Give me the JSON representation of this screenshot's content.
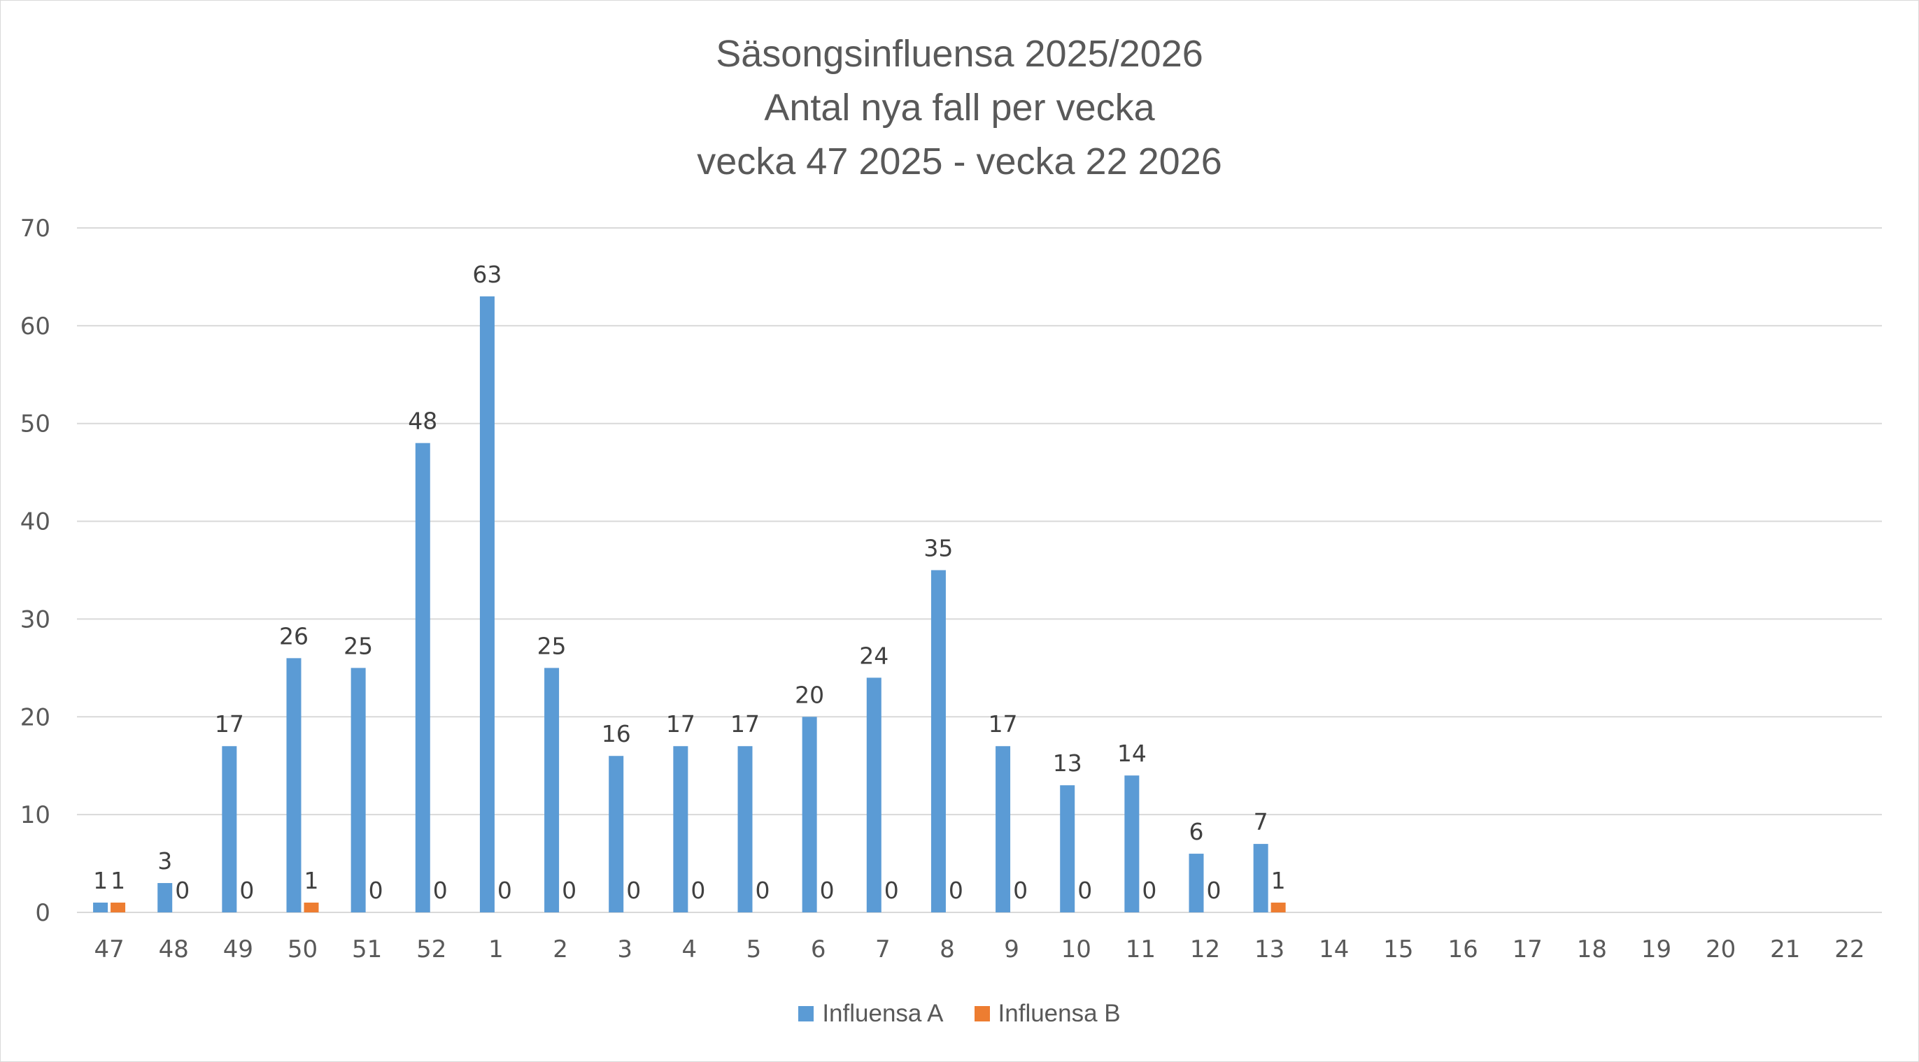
{
  "chart_data": {
    "type": "bar",
    "title": "Säsongsinfluensa 2025/2026",
    "subtitle": [
      "Antal nya fall per vecka",
      "vecka 47 2025 - vecka 22 2026"
    ],
    "xlabel": "",
    "ylabel": "",
    "ylim": [
      0,
      70
    ],
    "yticks": [
      0,
      10,
      20,
      30,
      40,
      50,
      60,
      70
    ],
    "grid": true,
    "legend_position": "bottom",
    "categories": [
      "47",
      "48",
      "49",
      "50",
      "51",
      "52",
      "1",
      "2",
      "3",
      "4",
      "5",
      "6",
      "7",
      "8",
      "9",
      "10",
      "11",
      "12",
      "13",
      "14",
      "15",
      "16",
      "17",
      "18",
      "19",
      "20",
      "21",
      "22"
    ],
    "series": [
      {
        "name": "Influensa A",
        "color": "#5b9bd5",
        "values": [
          1,
          3,
          17,
          26,
          25,
          48,
          63,
          25,
          16,
          17,
          17,
          20,
          24,
          35,
          17,
          13,
          14,
          6,
          7,
          null,
          null,
          null,
          null,
          null,
          null,
          null,
          null,
          null
        ]
      },
      {
        "name": "Influensa B",
        "color": "#ed7d31",
        "values": [
          1,
          0,
          0,
          1,
          0,
          0,
          0,
          0,
          0,
          0,
          0,
          0,
          0,
          0,
          0,
          0,
          0,
          0,
          1,
          null,
          null,
          null,
          null,
          null,
          null,
          null,
          null,
          null
        ]
      }
    ]
  },
  "title_lines": [
    "Säsongsinfluensa 2025/2026",
    "Antal nya fall per vecka",
    "vecka 47 2025 - vecka 22 2026"
  ],
  "legend": [
    {
      "label": "Influensa A",
      "color": "#5b9bd5"
    },
    {
      "label": "Influensa B",
      "color": "#ed7d31"
    }
  ]
}
